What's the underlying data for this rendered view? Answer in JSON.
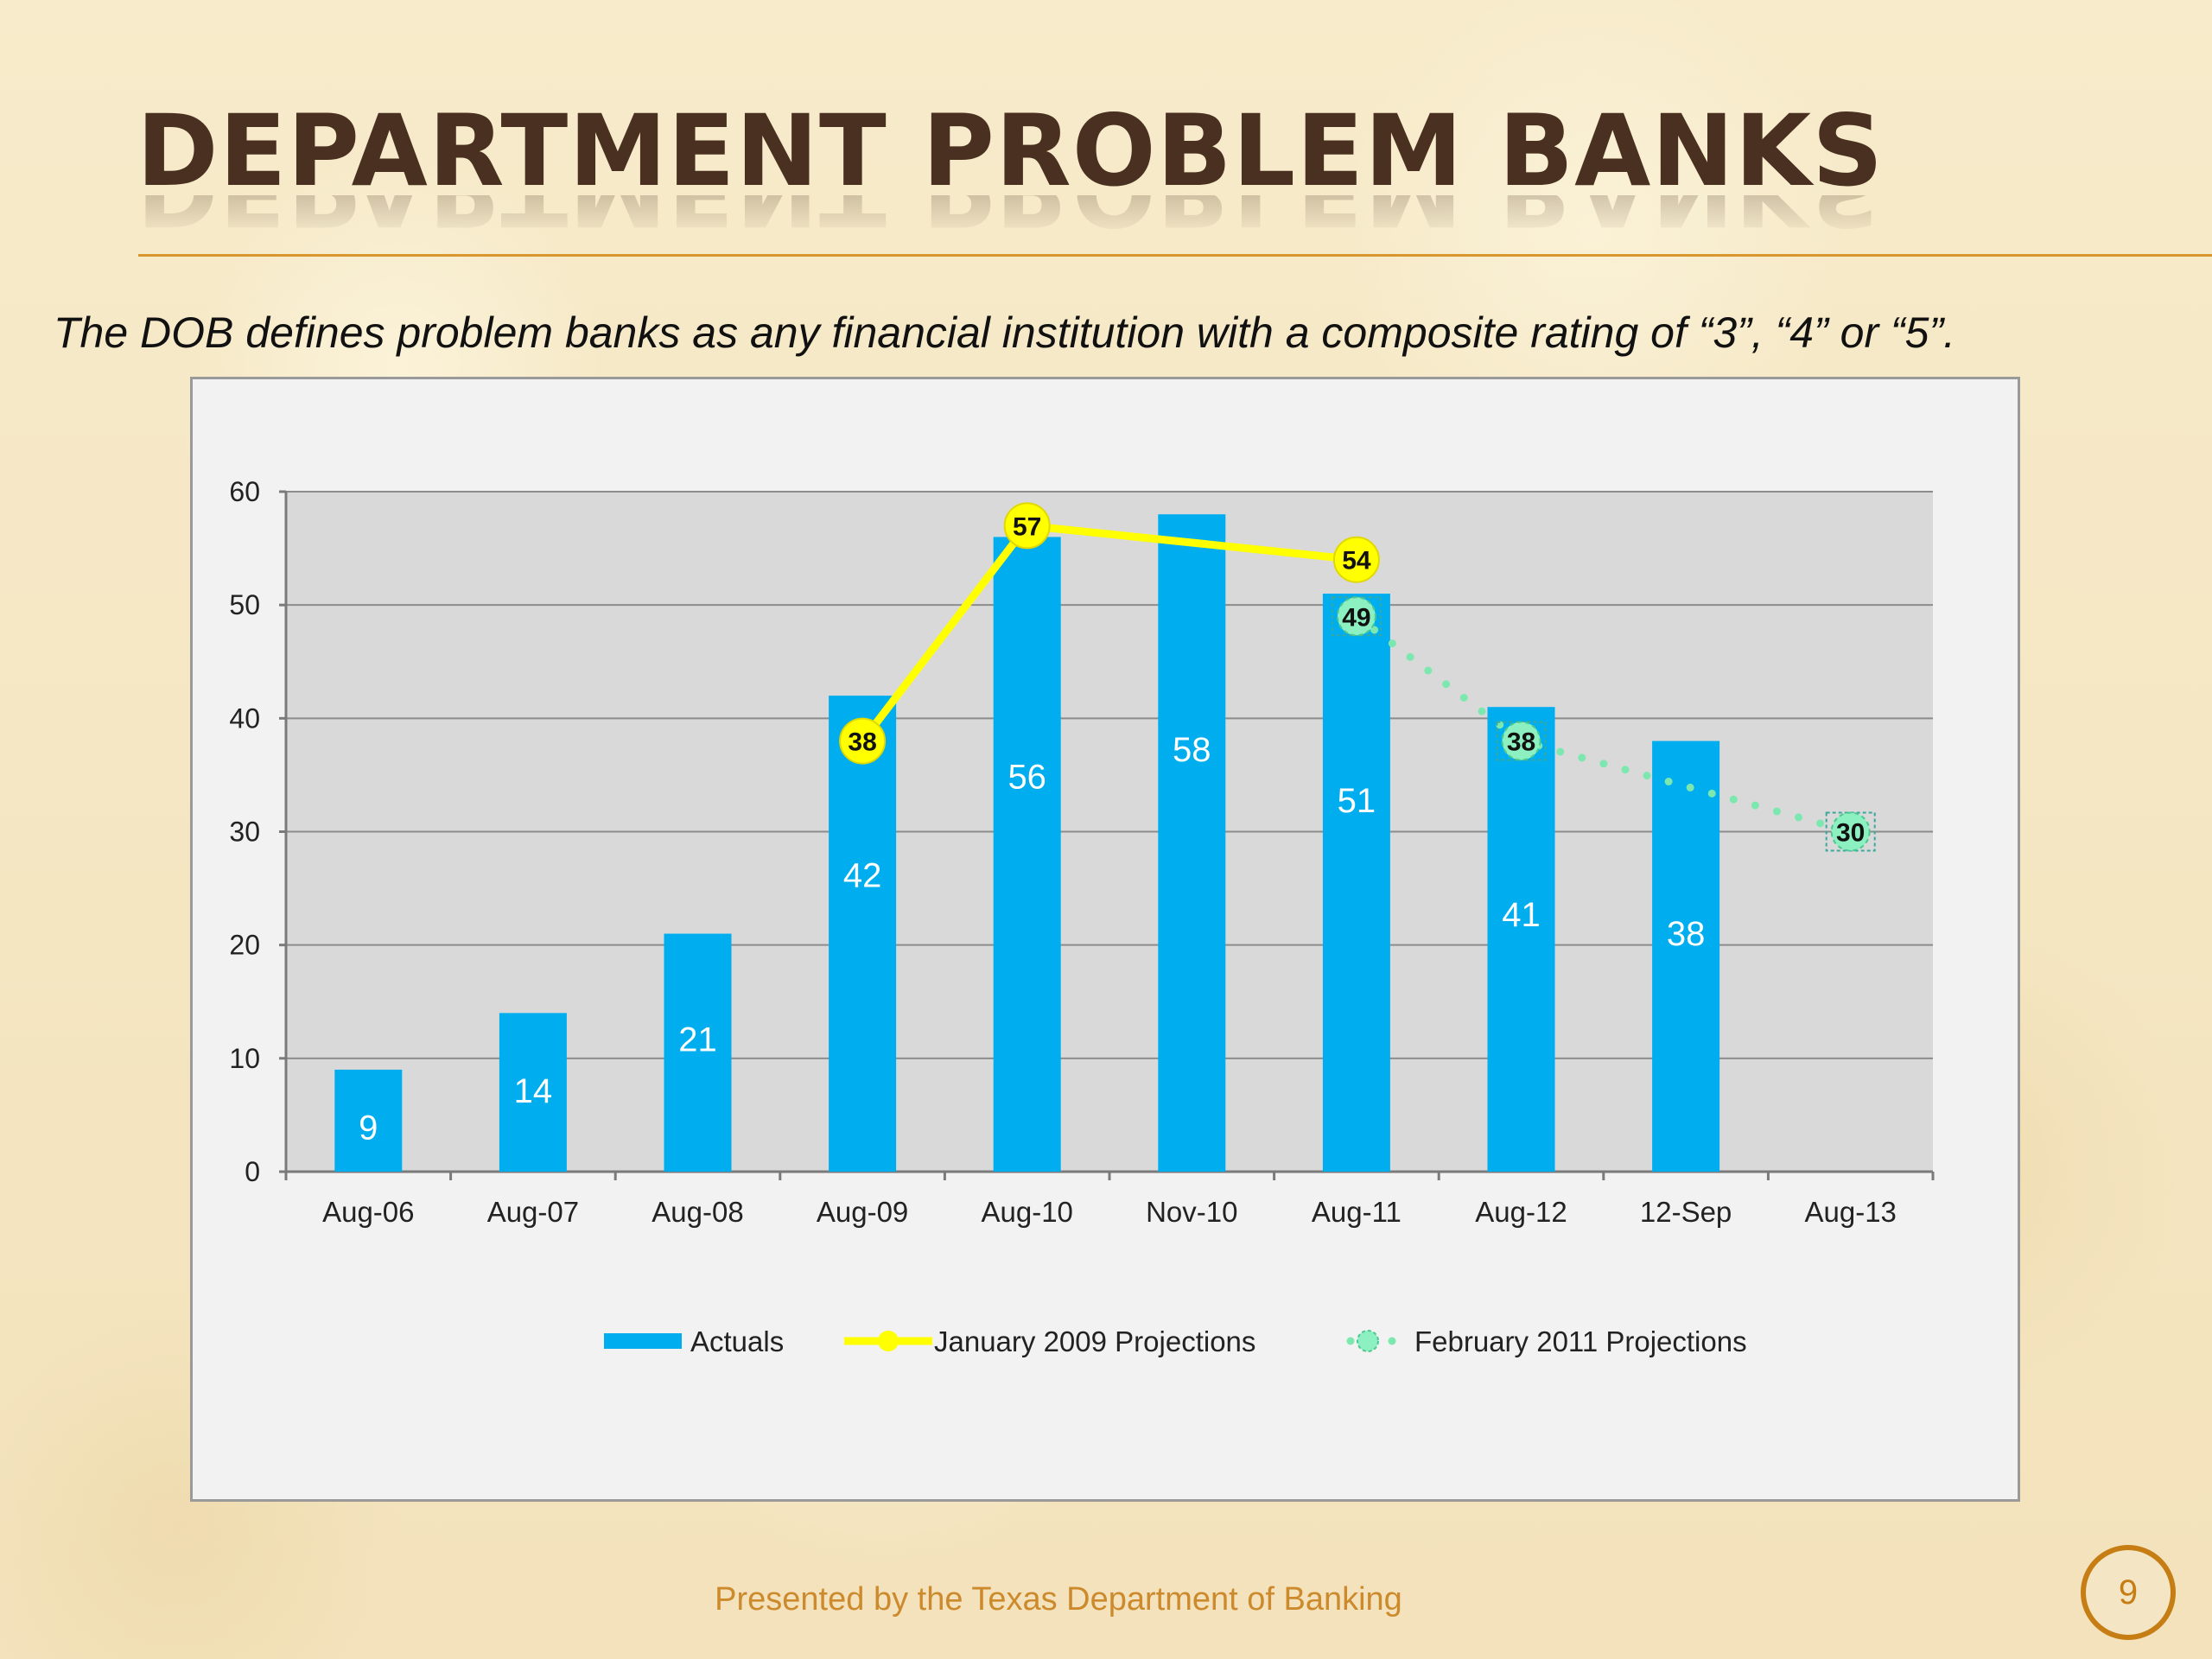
{
  "slide": {
    "title": "DEPARTMENT PROBLEM BANKS",
    "subtitle": "The DOB defines problem banks as any financial institution with a composite rating of  “3”, “4” or “5”.",
    "footer": "Presented by the Texas Department of Banking",
    "page_number": "9",
    "accent_color": "#d8962e"
  },
  "chart_data": {
    "type": "bar",
    "title": "",
    "xlabel": "",
    "ylabel": "",
    "ylim": [
      0,
      60
    ],
    "yticks": [
      0,
      10,
      20,
      30,
      40,
      50,
      60
    ],
    "grid": true,
    "legend_position": "bottom",
    "categories": [
      "Aug-06",
      "Aug-07",
      "Aug-08",
      "Aug-09",
      "Aug-10",
      "Nov-10",
      "Aug-11",
      "Aug-12",
      "12-Sep",
      "Aug-13"
    ],
    "series": [
      {
        "name": "Actuals",
        "kind": "bar",
        "color": "#00aeef",
        "values": [
          9,
          14,
          21,
          42,
          56,
          58,
          51,
          41,
          38,
          null
        ],
        "labels": [
          "9",
          "14",
          "21",
          "42",
          "56",
          "58",
          "51",
          "41",
          "38",
          null
        ]
      },
      {
        "name": "January 2009 Projections",
        "kind": "line",
        "color": "#ffff00",
        "values": [
          null,
          null,
          null,
          38,
          57,
          null,
          54,
          null,
          null,
          null
        ],
        "labels": [
          null,
          null,
          null,
          "38",
          "57",
          null,
          "54",
          null,
          null,
          null
        ]
      },
      {
        "name": "February 2011 Projections",
        "kind": "dotted-line",
        "color": "#7ce8b0",
        "values": [
          null,
          null,
          null,
          null,
          null,
          null,
          49,
          38,
          null,
          30
        ],
        "labels": [
          null,
          null,
          null,
          null,
          null,
          null,
          "49",
          "38",
          null,
          "30"
        ]
      }
    ]
  }
}
